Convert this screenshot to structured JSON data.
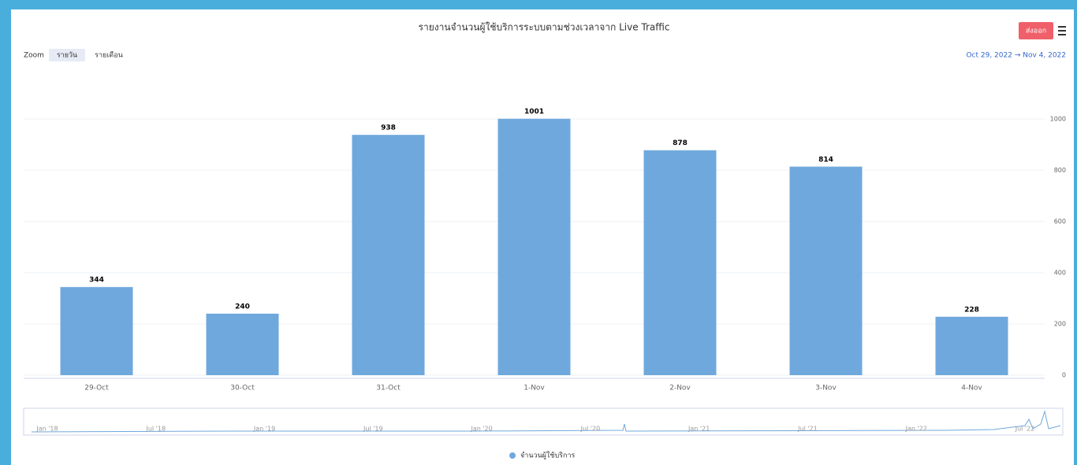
{
  "chart_data": {
    "type": "bar",
    "title": "รายงานจำนวนผู้ใช้บริการระบบตามช่วงเวลาจาก Live Traffic",
    "zoom_label": "Zoom",
    "zoom_buttons": [
      "รายวัน",
      "รายเดือน"
    ],
    "export_button": "ส่งออก",
    "date_range": "Oct 29, 2022 → Nov 4, 2022",
    "categories": [
      "29-Oct",
      "30-Oct",
      "31-Oct",
      "1-Nov",
      "2-Nov",
      "3-Nov",
      "4-Nov"
    ],
    "values": [
      344,
      240,
      938,
      1001,
      878,
      814,
      228
    ],
    "color": "#6fa8dc",
    "ylim": [
      0,
      1200
    ],
    "yticks": [
      0,
      200,
      400,
      600,
      800,
      1000
    ],
    "grid": true,
    "navigator_labels": [
      "Jan '18",
      "Jul '18",
      "Jan '19",
      "Jul '19",
      "Jan '20",
      "Jul '20",
      "Jan '21",
      "Jul '21",
      "Jan '22",
      "Jul '22"
    ],
    "legend": "จำนวนผู้ใช้บริการ"
  }
}
